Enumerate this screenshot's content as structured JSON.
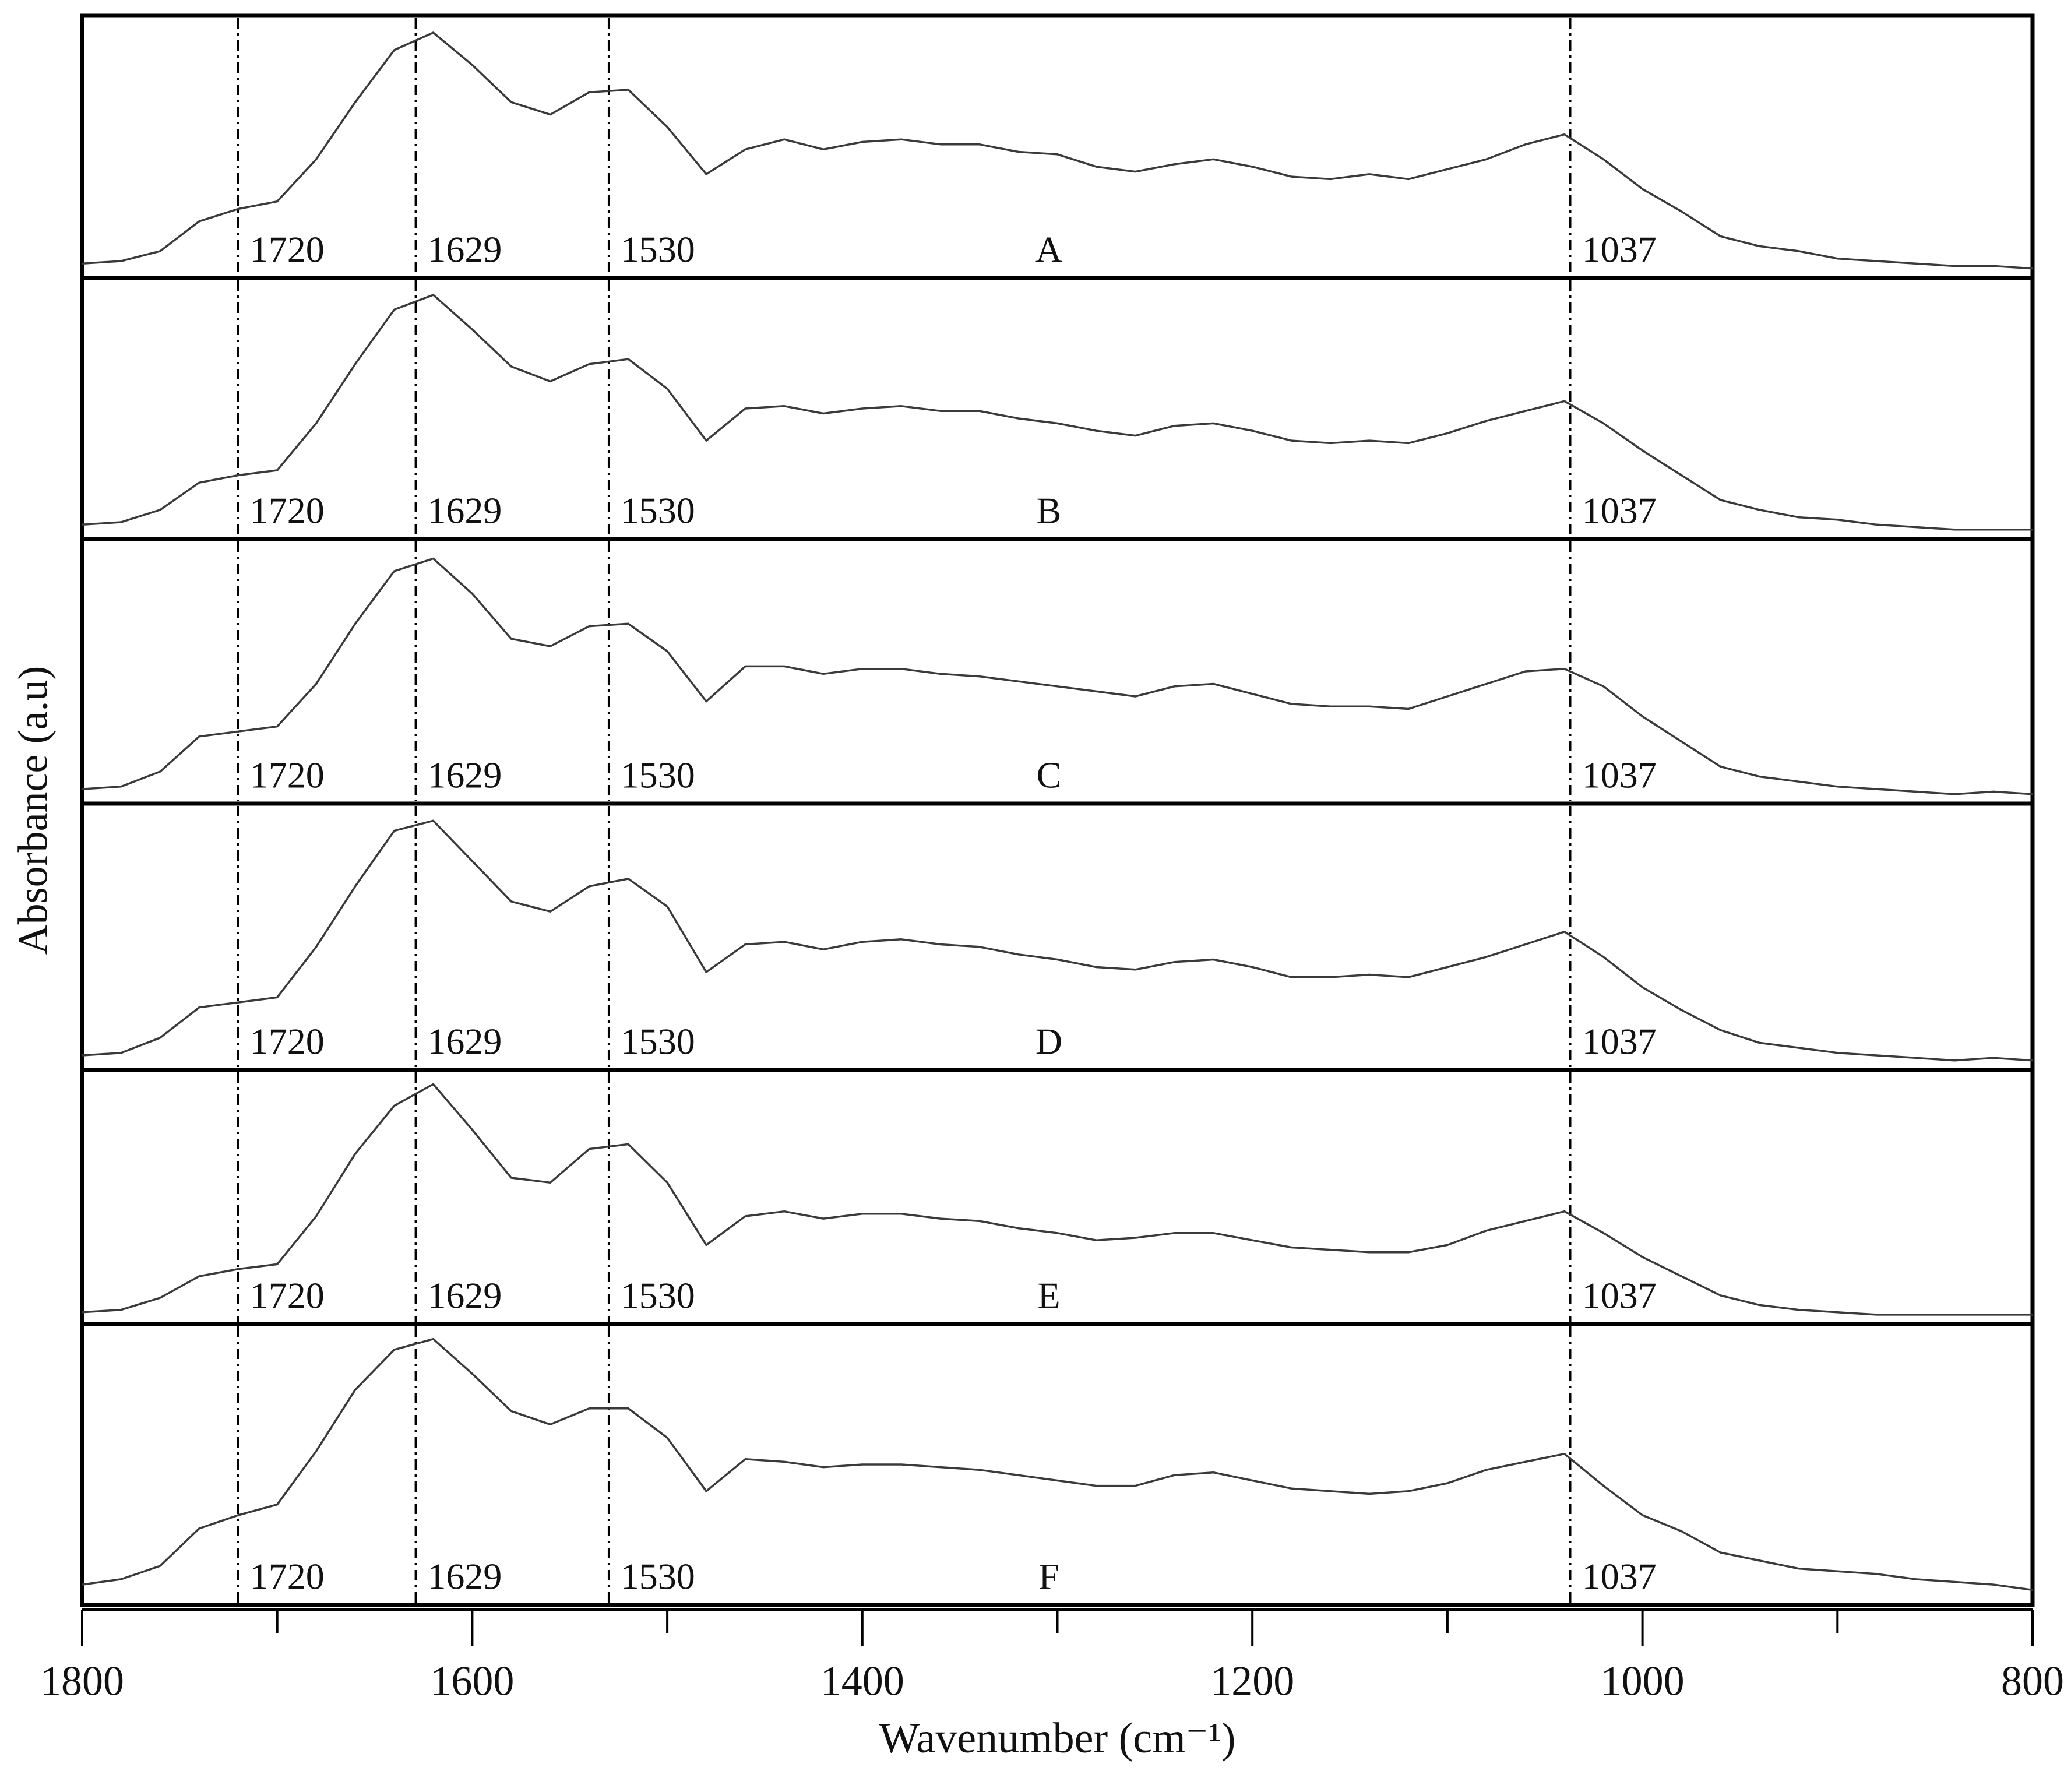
{
  "chart_data": [
    {
      "type": "line",
      "ylabel": "Absorbance (a.u)",
      "xlim": [
        1800,
        800
      ],
      "ylim": [
        0,
        1
      ],
      "peaks": [
        1720,
        1629,
        1530,
        1037
      ],
      "x": [
        1800,
        1780,
        1760,
        1740,
        1720,
        1700,
        1680,
        1660,
        1640,
        1620,
        1600,
        1580,
        1560,
        1540,
        1520,
        1500,
        1480,
        1460,
        1440,
        1420,
        1400,
        1380,
        1360,
        1340,
        1320,
        1300,
        1280,
        1260,
        1240,
        1220,
        1200,
        1180,
        1160,
        1140,
        1120,
        1100,
        1080,
        1060,
        1040,
        1020,
        1000,
        980,
        960,
        940,
        920,
        900,
        880,
        860,
        840,
        820,
        800
      ],
      "series": [
        {
          "name": "A",
          "color": "#3a3a3a",
          "values": [
            0.03,
            0.04,
            0.08,
            0.2,
            0.25,
            0.28,
            0.45,
            0.68,
            0.89,
            0.96,
            0.83,
            0.68,
            0.63,
            0.72,
            0.73,
            0.58,
            0.39,
            0.49,
            0.53,
            0.49,
            0.52,
            0.53,
            0.51,
            0.51,
            0.48,
            0.47,
            0.42,
            0.4,
            0.43,
            0.45,
            0.42,
            0.38,
            0.37,
            0.39,
            0.37,
            0.41,
            0.45,
            0.51,
            0.55,
            0.45,
            0.33,
            0.24,
            0.14,
            0.1,
            0.08,
            0.05,
            0.04,
            0.03,
            0.02,
            0.02,
            0.01
          ]
        }
      ]
    },
    {
      "type": "line",
      "xlim": [
        1800,
        800
      ],
      "ylim": [
        0,
        1
      ],
      "peaks": [
        1720,
        1629,
        1530,
        1037
      ],
      "x": [
        1800,
        1780,
        1760,
        1740,
        1720,
        1700,
        1680,
        1660,
        1640,
        1620,
        1600,
        1580,
        1560,
        1540,
        1520,
        1500,
        1480,
        1460,
        1440,
        1420,
        1400,
        1380,
        1360,
        1340,
        1320,
        1300,
        1280,
        1260,
        1240,
        1220,
        1200,
        1180,
        1160,
        1140,
        1120,
        1100,
        1080,
        1060,
        1040,
        1020,
        1000,
        980,
        960,
        940,
        920,
        900,
        880,
        860,
        840,
        820,
        800
      ],
      "series": [
        {
          "name": "B",
          "color": "#3a3a3a",
          "values": [
            0.03,
            0.04,
            0.09,
            0.2,
            0.23,
            0.25,
            0.44,
            0.68,
            0.9,
            0.96,
            0.82,
            0.67,
            0.61,
            0.68,
            0.7,
            0.58,
            0.37,
            0.5,
            0.51,
            0.48,
            0.5,
            0.51,
            0.49,
            0.49,
            0.46,
            0.44,
            0.41,
            0.39,
            0.43,
            0.44,
            0.41,
            0.37,
            0.36,
            0.37,
            0.36,
            0.4,
            0.45,
            0.49,
            0.53,
            0.44,
            0.33,
            0.23,
            0.13,
            0.09,
            0.06,
            0.05,
            0.03,
            0.02,
            0.01,
            0.01,
            0.01
          ]
        }
      ]
    },
    {
      "type": "line",
      "xlim": [
        1800,
        800
      ],
      "ylim": [
        0,
        1
      ],
      "peaks": [
        1720,
        1629,
        1530,
        1037
      ],
      "x": [
        1800,
        1780,
        1760,
        1740,
        1720,
        1700,
        1680,
        1660,
        1640,
        1620,
        1600,
        1580,
        1560,
        1540,
        1520,
        1500,
        1480,
        1460,
        1440,
        1420,
        1400,
        1380,
        1360,
        1340,
        1320,
        1300,
        1280,
        1260,
        1240,
        1220,
        1200,
        1180,
        1160,
        1140,
        1120,
        1100,
        1080,
        1060,
        1040,
        1020,
        1000,
        980,
        960,
        940,
        920,
        900,
        880,
        860,
        840,
        820,
        800
      ],
      "series": [
        {
          "name": "C",
          "color": "#3a3a3a",
          "values": [
            0.03,
            0.04,
            0.1,
            0.24,
            0.26,
            0.28,
            0.45,
            0.69,
            0.9,
            0.95,
            0.81,
            0.63,
            0.6,
            0.68,
            0.69,
            0.58,
            0.38,
            0.52,
            0.52,
            0.49,
            0.51,
            0.51,
            0.49,
            0.48,
            0.46,
            0.44,
            0.42,
            0.4,
            0.44,
            0.45,
            0.41,
            0.37,
            0.36,
            0.36,
            0.35,
            0.4,
            0.45,
            0.5,
            0.51,
            0.44,
            0.32,
            0.22,
            0.12,
            0.08,
            0.06,
            0.04,
            0.03,
            0.02,
            0.01,
            0.02,
            0.01
          ]
        }
      ]
    },
    {
      "type": "line",
      "xlim": [
        1800,
        800
      ],
      "ylim": [
        0,
        1
      ],
      "peaks": [
        1720,
        1629,
        1530,
        1037
      ],
      "x": [
        1800,
        1780,
        1760,
        1740,
        1720,
        1700,
        1680,
        1660,
        1640,
        1620,
        1600,
        1580,
        1560,
        1540,
        1520,
        1500,
        1480,
        1460,
        1440,
        1420,
        1400,
        1380,
        1360,
        1340,
        1320,
        1300,
        1280,
        1260,
        1240,
        1220,
        1200,
        1180,
        1160,
        1140,
        1120,
        1100,
        1080,
        1060,
        1040,
        1020,
        1000,
        980,
        960,
        940,
        920,
        900,
        880,
        860,
        840,
        820,
        800
      ],
      "series": [
        {
          "name": "D",
          "color": "#3a3a3a",
          "values": [
            0.03,
            0.04,
            0.1,
            0.22,
            0.24,
            0.26,
            0.46,
            0.7,
            0.92,
            0.96,
            0.8,
            0.64,
            0.6,
            0.7,
            0.73,
            0.62,
            0.36,
            0.47,
            0.48,
            0.45,
            0.48,
            0.49,
            0.47,
            0.46,
            0.43,
            0.41,
            0.38,
            0.37,
            0.4,
            0.41,
            0.38,
            0.34,
            0.34,
            0.35,
            0.34,
            0.38,
            0.42,
            0.47,
            0.52,
            0.42,
            0.3,
            0.21,
            0.13,
            0.08,
            0.06,
            0.04,
            0.03,
            0.02,
            0.01,
            0.02,
            0.01
          ]
        }
      ]
    },
    {
      "type": "line",
      "xlim": [
        1800,
        800
      ],
      "ylim": [
        0,
        1
      ],
      "peaks": [
        1720,
        1629,
        1530,
        1037
      ],
      "x": [
        1800,
        1780,
        1760,
        1740,
        1720,
        1700,
        1680,
        1660,
        1640,
        1620,
        1600,
        1580,
        1560,
        1540,
        1520,
        1500,
        1480,
        1460,
        1440,
        1420,
        1400,
        1380,
        1360,
        1340,
        1320,
        1300,
        1280,
        1260,
        1240,
        1220,
        1200,
        1180,
        1160,
        1140,
        1120,
        1100,
        1080,
        1060,
        1040,
        1020,
        1000,
        980,
        960,
        940,
        920,
        900,
        880,
        860,
        840,
        820,
        800
      ],
      "series": [
        {
          "name": "E",
          "color": "#3a3a3a",
          "values": [
            0.02,
            0.03,
            0.08,
            0.17,
            0.2,
            0.22,
            0.42,
            0.68,
            0.88,
            0.97,
            0.78,
            0.58,
            0.56,
            0.7,
            0.72,
            0.56,
            0.3,
            0.42,
            0.44,
            0.41,
            0.43,
            0.43,
            0.41,
            0.4,
            0.37,
            0.35,
            0.32,
            0.33,
            0.35,
            0.35,
            0.32,
            0.29,
            0.28,
            0.27,
            0.27,
            0.3,
            0.36,
            0.4,
            0.44,
            0.35,
            0.25,
            0.17,
            0.09,
            0.05,
            0.03,
            0.02,
            0.01,
            0.01,
            0.01,
            0.01,
            0.01
          ]
        }
      ]
    },
    {
      "type": "line",
      "xlabel": "Wavenumber (cm⁻¹)",
      "xlim": [
        1800,
        800
      ],
      "ylim": [
        0,
        1
      ],
      "peaks": [
        1720,
        1629,
        1530,
        1037
      ],
      "xticks": [
        1800,
        1600,
        1400,
        1200,
        1000,
        800
      ],
      "xticks_minor": [
        1700,
        1500,
        1300,
        1100,
        900
      ],
      "x": [
        1800,
        1780,
        1760,
        1740,
        1720,
        1700,
        1680,
        1660,
        1640,
        1620,
        1600,
        1580,
        1560,
        1540,
        1520,
        1500,
        1480,
        1460,
        1440,
        1420,
        1400,
        1380,
        1360,
        1340,
        1320,
        1300,
        1280,
        1260,
        1240,
        1220,
        1200,
        1180,
        1160,
        1140,
        1120,
        1100,
        1080,
        1060,
        1040,
        1020,
        1000,
        980,
        960,
        940,
        920,
        900,
        880,
        860,
        840,
        820,
        800
      ],
      "series": [
        {
          "name": "F",
          "color": "#3a3a3a",
          "values": [
            0.05,
            0.07,
            0.12,
            0.26,
            0.31,
            0.35,
            0.55,
            0.78,
            0.93,
            0.97,
            0.84,
            0.7,
            0.65,
            0.71,
            0.71,
            0.6,
            0.4,
            0.52,
            0.51,
            0.49,
            0.5,
            0.5,
            0.49,
            0.48,
            0.46,
            0.44,
            0.42,
            0.42,
            0.46,
            0.47,
            0.44,
            0.41,
            0.4,
            0.39,
            0.4,
            0.43,
            0.48,
            0.51,
            0.54,
            0.42,
            0.31,
            0.25,
            0.17,
            0.14,
            0.11,
            0.1,
            0.09,
            0.07,
            0.06,
            0.05,
            0.03
          ]
        }
      ]
    }
  ]
}
